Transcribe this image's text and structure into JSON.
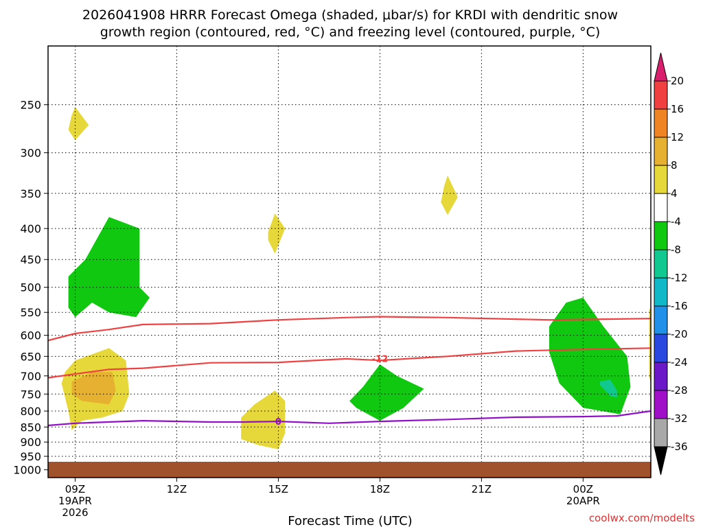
{
  "chart_data": {
    "type": "contour",
    "title_lines": [
      "2026041908 HRRR Forecast Omega (shaded, μbar/s) for KRDI with dendritic snow",
      "growth region (contoured, red, °C) and freezing level (contoured, purple, °C)"
    ],
    "xlabel": "Forecast Time (UTC)",
    "x_ticks": [
      {
        "hour": 9,
        "lines": [
          "09Z",
          "19APR",
          "2026"
        ]
      },
      {
        "hour": 12,
        "lines": [
          "12Z"
        ]
      },
      {
        "hour": 15,
        "lines": [
          "15Z"
        ]
      },
      {
        "hour": 18,
        "lines": [
          "18Z"
        ]
      },
      {
        "hour": 21,
        "lines": [
          "21Z"
        ]
      },
      {
        "hour": 24,
        "lines": [
          "00Z",
          "20APR"
        ]
      }
    ],
    "xlim": [
      8.2,
      26
    ],
    "y_scale": "log",
    "ylim_hpa": [
      1030,
      200
    ],
    "y_ticks": [
      250,
      300,
      350,
      400,
      450,
      500,
      550,
      600,
      650,
      700,
      750,
      800,
      850,
      900,
      950,
      1000
    ],
    "surface_pressure_hpa": 970,
    "colorbar": {
      "labels": [
        "20",
        "16",
        "12",
        "8",
        "4",
        "-4",
        "-8",
        "-12",
        "-16",
        "-20",
        "-24",
        "-28",
        "-32",
        "-36"
      ],
      "bins": [
        {
          "color": "#d91e6e"
        },
        {
          "color": "#f04040"
        },
        {
          "color": "#ee8424"
        },
        {
          "color": "#e6b030"
        },
        {
          "color": "#e6d83a"
        },
        {
          "color": "#ffffff"
        },
        {
          "color": "#10c810"
        },
        {
          "color": "#10c890"
        },
        {
          "color": "#10b8c8"
        },
        {
          "color": "#2090e8"
        },
        {
          "color": "#2848e0"
        },
        {
          "color": "#6a18c8"
        },
        {
          "color": "#a010c8"
        },
        {
          "color": "#a8a8a8"
        },
        {
          "color": "#000000"
        }
      ]
    },
    "shaded_regions": [
      {
        "omega_bin": "4 to 8",
        "color": "#e6d83a",
        "points": [
          [
            8.9,
            260
          ],
          [
            9.0,
            252
          ],
          [
            9.4,
            270
          ],
          [
            9.0,
            286
          ],
          [
            8.8,
            275
          ]
        ]
      },
      {
        "omega_bin": "4 to 8",
        "color": "#e6d83a",
        "points": [
          [
            14.7,
            405
          ],
          [
            14.9,
            378
          ],
          [
            15.2,
            400
          ],
          [
            14.9,
            440
          ],
          [
            14.7,
            418
          ]
        ]
      },
      {
        "omega_bin": "4 to 8",
        "color": "#e6d83a",
        "points": [
          [
            19.9,
            340
          ],
          [
            20.0,
            327
          ],
          [
            20.3,
            355
          ],
          [
            20.0,
            380
          ],
          [
            19.8,
            362
          ]
        ]
      },
      {
        "omega_bin": "4 to 8",
        "color": "#e6d83a",
        "points": [
          [
            8.7,
            690
          ],
          [
            9.0,
            660
          ],
          [
            10.0,
            630
          ],
          [
            10.5,
            660
          ],
          [
            10.6,
            750
          ],
          [
            10.4,
            800
          ],
          [
            9.8,
            820
          ],
          [
            9.2,
            830
          ],
          [
            8.9,
            860
          ],
          [
            8.8,
            800
          ],
          [
            8.6,
            720
          ]
        ]
      },
      {
        "omega_bin": "4 to 8",
        "color": "#e6d83a",
        "points": [
          [
            13.9,
            820
          ],
          [
            14.3,
            780
          ],
          [
            14.9,
            740
          ],
          [
            15.2,
            770
          ],
          [
            15.2,
            870
          ],
          [
            15.0,
            925
          ],
          [
            14.4,
            910
          ],
          [
            13.9,
            890
          ]
        ]
      },
      {
        "omega_bin": "4 to 8",
        "color": "#e6d83a",
        "points": [
          [
            25.95,
            545
          ],
          [
            26.0,
            540
          ],
          [
            26.0,
            720
          ],
          [
            25.95,
            700
          ]
        ]
      },
      {
        "omega_bin": "8 to 12",
        "color": "#e6b030",
        "points": [
          [
            8.9,
            715
          ],
          [
            9.5,
            690
          ],
          [
            10.1,
            690
          ],
          [
            10.2,
            740
          ],
          [
            10.0,
            780
          ],
          [
            9.2,
            770
          ],
          [
            8.9,
            750
          ]
        ]
      },
      {
        "omega_bin": "-8 to -4",
        "color": "#10c810",
        "points": [
          [
            8.8,
            480
          ],
          [
            9.3,
            450
          ],
          [
            10.0,
            383
          ],
          [
            10.9,
            400
          ],
          [
            10.9,
            500
          ],
          [
            11.2,
            520
          ],
          [
            10.8,
            560
          ],
          [
            10.0,
            550
          ],
          [
            9.5,
            530
          ],
          [
            9.0,
            560
          ],
          [
            8.8,
            540
          ]
        ]
      },
      {
        "omega_bin": "-8 to -4",
        "color": "#10c810",
        "points": [
          [
            17.1,
            770
          ],
          [
            17.5,
            730
          ],
          [
            18.0,
            670
          ],
          [
            18.5,
            700
          ],
          [
            19.3,
            735
          ],
          [
            18.7,
            790
          ],
          [
            18.0,
            830
          ],
          [
            17.3,
            790
          ]
        ]
      },
      {
        "omega_bin": "-8 to -4",
        "color": "#10c810",
        "points": [
          [
            23.0,
            640
          ],
          [
            23.0,
            580
          ],
          [
            23.5,
            530
          ],
          [
            24.0,
            520
          ],
          [
            24.6,
            580
          ],
          [
            25.3,
            650
          ],
          [
            25.4,
            730
          ],
          [
            25.1,
            810
          ],
          [
            24.0,
            790
          ],
          [
            23.3,
            720
          ]
        ]
      },
      {
        "omega_bin": "-12 to -8",
        "color": "#10c890",
        "points": [
          [
            24.5,
            715
          ],
          [
            24.8,
            710
          ],
          [
            25.0,
            740
          ],
          [
            25.0,
            760
          ],
          [
            24.8,
            755
          ],
          [
            24.5,
            725
          ]
        ]
      }
    ],
    "contours": [
      {
        "label": "",
        "color": "#f04040",
        "points": [
          [
            8.2,
            612
          ],
          [
            9.0,
            596
          ],
          [
            10.0,
            587
          ],
          [
            11.0,
            576
          ],
          [
            13.0,
            574
          ],
          [
            15.0,
            566
          ],
          [
            17.0,
            561
          ],
          [
            18.0,
            559
          ],
          [
            20.0,
            561
          ],
          [
            23.0,
            566
          ],
          [
            26.0,
            563
          ]
        ]
      },
      {
        "label": "-12",
        "label_at": [
          18.0,
          655
        ],
        "color": "#f04040",
        "points": [
          [
            8.2,
            705
          ],
          [
            9.0,
            695
          ],
          [
            10.0,
            683
          ],
          [
            11.0,
            680
          ],
          [
            13.0,
            666
          ],
          [
            15.0,
            665
          ],
          [
            17.0,
            656
          ],
          [
            18.0,
            660
          ],
          [
            20.0,
            650
          ],
          [
            22.0,
            637
          ],
          [
            24.0,
            633
          ],
          [
            26.0,
            630
          ]
        ]
      },
      {
        "label": "0",
        "label_at": [
          15.0,
          832
        ],
        "color": "#9010c8",
        "points": [
          [
            8.2,
            845
          ],
          [
            9.0,
            838
          ],
          [
            11.0,
            830
          ],
          [
            13.0,
            834
          ],
          [
            14.0,
            834
          ],
          [
            15.0,
            832
          ],
          [
            16.5,
            838
          ],
          [
            18.0,
            832
          ],
          [
            20.0,
            826
          ],
          [
            22.0,
            819
          ],
          [
            24.0,
            817
          ],
          [
            25.0,
            815
          ],
          [
            26.0,
            800
          ]
        ]
      }
    ],
    "credit": "coolwx.com/modelts"
  }
}
